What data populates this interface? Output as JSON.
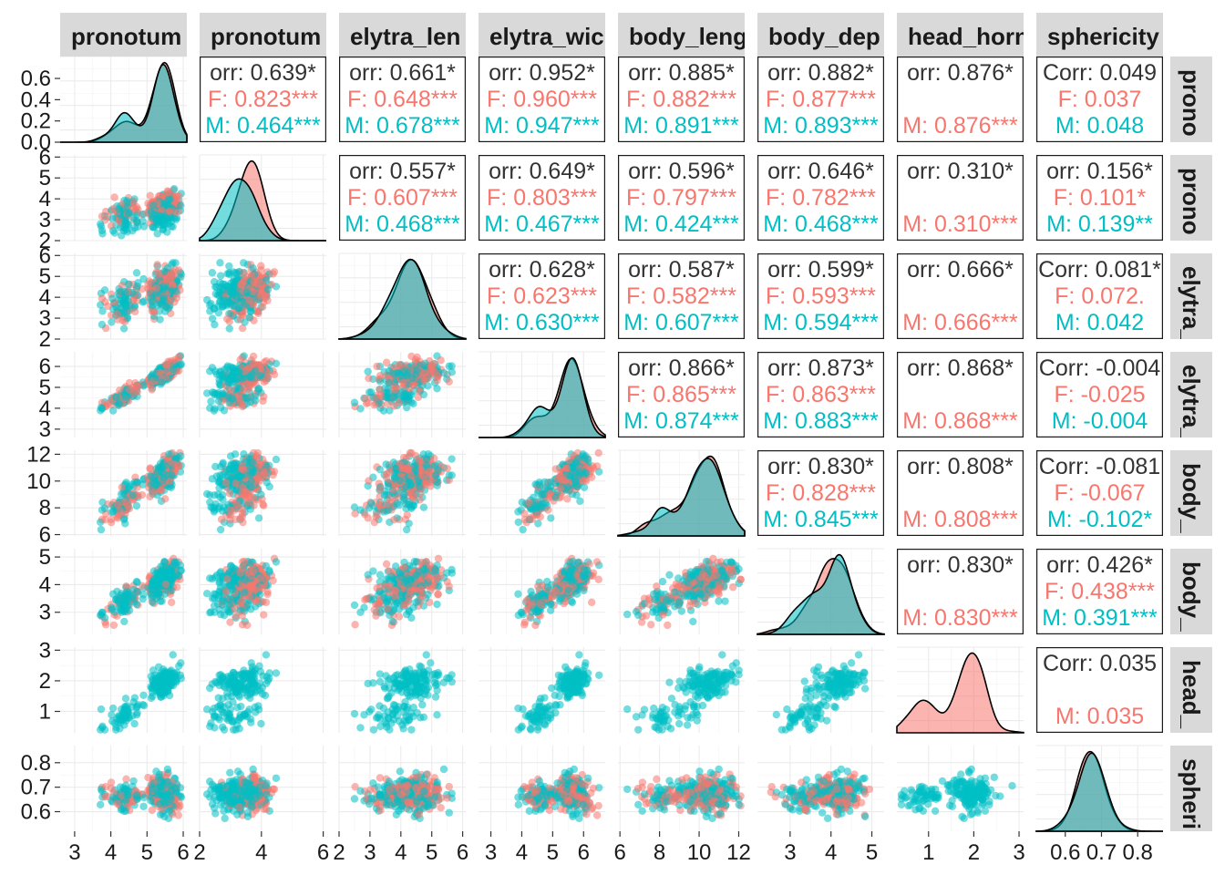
{
  "chart_data": {
    "type": "scatter",
    "variables": [
      "pronotum_width",
      "pronotum_length",
      "elytra_length",
      "elytra_width",
      "body_length",
      "body_depth",
      "head_horn",
      "sphericity"
    ],
    "column_strip_labels": [
      "pronotum",
      "pronotum",
      "elytra_len",
      "elytra_wic",
      "body_leng",
      "body_dep",
      "head_horn",
      "sphericity"
    ],
    "row_strip_labels": [
      "prono",
      "prono",
      "elytra_",
      "elytra_",
      "body_",
      "body_",
      "head_",
      "spheri"
    ],
    "groups": [
      {
        "name": "F",
        "color": "#F8766D"
      },
      {
        "name": "M",
        "color": "#00BFC4"
      }
    ],
    "ranges": [
      [
        2.6,
        6.1
      ],
      [
        2.0,
        6.1
      ],
      [
        2.0,
        6.1
      ],
      [
        2.6,
        6.7
      ],
      [
        5.9,
        12.3
      ],
      [
        2.2,
        5.3
      ],
      [
        0.3,
        3.1
      ],
      [
        0.52,
        0.87
      ]
    ],
    "x_ticks": [
      [
        3,
        4,
        5,
        6
      ],
      [
        2,
        4,
        6
      ],
      [
        2,
        3,
        4,
        5,
        6
      ],
      [
        3,
        4,
        5,
        6
      ],
      [
        6,
        8,
        10,
        12
      ],
      [
        3,
        4,
        5
      ],
      [
        1,
        2,
        3
      ],
      [
        0.6,
        0.7,
        0.8
      ]
    ],
    "x_tick_labels": [
      [
        "3",
        "4",
        "5",
        "6"
      ],
      [
        "2",
        "4",
        "6"
      ],
      [
        "2",
        "3",
        "4",
        "5",
        "6"
      ],
      [
        "3",
        "4",
        "5",
        "6"
      ],
      [
        "6",
        "8",
        "10",
        "12"
      ],
      [
        "3",
        "4",
        "5"
      ],
      [
        "1",
        "2",
        "3"
      ],
      [
        "0.6",
        "0.7",
        "0.8"
      ]
    ],
    "y_ticks": [
      [
        0.0,
        0.2,
        0.4,
        0.6
      ],
      [
        2,
        3,
        4,
        5,
        6
      ],
      [
        2,
        3,
        4,
        5,
        6
      ],
      [
        3,
        4,
        5,
        6
      ],
      [
        6,
        8,
        10,
        12
      ],
      [
        3,
        4,
        5
      ],
      [
        1,
        2,
        3
      ],
      [
        0.6,
        0.7,
        0.8
      ]
    ],
    "y_tick_labels": [
      [
        "0.0",
        "0.2",
        "0.4",
        "0.6"
      ],
      [
        "2",
        "3",
        "4",
        "5",
        "6"
      ],
      [
        "2",
        "3",
        "4",
        "5",
        "6"
      ],
      [
        "3",
        "4",
        "5",
        "6"
      ],
      [
        "6",
        "8",
        "10",
        "12"
      ],
      [
        "3",
        "4",
        "5"
      ],
      [
        "1",
        "2",
        "3"
      ],
      [
        "0.6",
        "0.7",
        "0.8"
      ]
    ],
    "density_ymax_first": 0.75,
    "correlations": [
      {
        "row": 0,
        "col": 1,
        "overall": "0.639",
        "F": "0.823",
        "M": "0.464"
      },
      {
        "row": 0,
        "col": 2,
        "overall": "0.661",
        "F": "0.648",
        "M": "0.678"
      },
      {
        "row": 0,
        "col": 3,
        "overall": "0.952",
        "F": "0.960",
        "M": "0.947"
      },
      {
        "row": 0,
        "col": 4,
        "overall": "0.885",
        "F": "0.882",
        "M": "0.891"
      },
      {
        "row": 0,
        "col": 5,
        "overall": "0.882",
        "F": "0.877",
        "M": "0.893"
      },
      {
        "row": 0,
        "col": 6,
        "overall": "0.876",
        "F": "",
        "M": "0.876"
      },
      {
        "row": 0,
        "col": 7,
        "overall": "0.049",
        "F": "0.037",
        "M": "0.048"
      },
      {
        "row": 1,
        "col": 2,
        "overall": "0.557",
        "F": "0.607",
        "M": "0.468"
      },
      {
        "row": 1,
        "col": 3,
        "overall": "0.649",
        "F": "0.803",
        "M": "0.467"
      },
      {
        "row": 1,
        "col": 4,
        "overall": "0.596",
        "F": "0.797",
        "M": "0.424"
      },
      {
        "row": 1,
        "col": 5,
        "overall": "0.646",
        "F": "0.782",
        "M": "0.468"
      },
      {
        "row": 1,
        "col": 6,
        "overall": "0.310",
        "F": "",
        "M": "0.310"
      },
      {
        "row": 1,
        "col": 7,
        "overall": "0.156",
        "F": "0.101",
        "M": "0.139"
      },
      {
        "row": 2,
        "col": 3,
        "overall": "0.628",
        "F": "0.623",
        "M": "0.630"
      },
      {
        "row": 2,
        "col": 4,
        "overall": "0.587",
        "F": "0.582",
        "M": "0.607"
      },
      {
        "row": 2,
        "col": 5,
        "overall": "0.599",
        "F": "0.593",
        "M": "0.594"
      },
      {
        "row": 2,
        "col": 6,
        "overall": "0.666",
        "F": "",
        "M": "0.666"
      },
      {
        "row": 2,
        "col": 7,
        "overall": "0.081",
        "F": "0.072",
        "M": "0.042"
      },
      {
        "row": 3,
        "col": 4,
        "overall": "0.866",
        "F": "0.865",
        "M": "0.874"
      },
      {
        "row": 3,
        "col": 5,
        "overall": "0.873",
        "F": "0.863",
        "M": "0.883"
      },
      {
        "row": 3,
        "col": 6,
        "overall": "0.868",
        "F": "",
        "M": "0.868"
      },
      {
        "row": 3,
        "col": 7,
        "overall": "-0.004",
        "F": "-0.025",
        "M": "-0.004"
      },
      {
        "row": 4,
        "col": 5,
        "overall": "0.830",
        "F": "0.828",
        "M": "0.845"
      },
      {
        "row": 4,
        "col": 6,
        "overall": "0.808",
        "F": "",
        "M": "0.808"
      },
      {
        "row": 4,
        "col": 7,
        "overall": "-0.081",
        "F": "-0.067",
        "M": "-0.102"
      },
      {
        "row": 5,
        "col": 6,
        "overall": "0.830",
        "F": "",
        "M": "0.830"
      },
      {
        "row": 5,
        "col": 7,
        "overall": "0.426",
        "F": "0.438",
        "M": "0.391"
      },
      {
        "row": 6,
        "col": 7,
        "overall": "0.035",
        "F": "",
        "M": "0.035"
      }
    ],
    "corr_cells_text": {
      "0-1": [
        "orr: 0.639*",
        "F: 0.823***",
        "M: 0.464***"
      ],
      "0-2": [
        "orr: 0.661*",
        "F: 0.648***",
        "M: 0.678***"
      ],
      "0-3": [
        "orr: 0.952*",
        "F: 0.960***",
        "M: 0.947***"
      ],
      "0-4": [
        "orr: 0.885*",
        "F: 0.882***",
        "M: 0.891***"
      ],
      "0-5": [
        "orr: 0.882*",
        "F: 0.877***",
        "M: 0.893***"
      ],
      "0-6": [
        "orr: 0.876*",
        "",
        "M: 0.876***"
      ],
      "0-7": [
        "Corr: 0.049",
        "F: 0.037",
        "M: 0.048"
      ],
      "1-2": [
        "orr: 0.557*",
        "F: 0.607***",
        "M: 0.468***"
      ],
      "1-3": [
        "orr: 0.649*",
        "F: 0.803***",
        "M: 0.467***"
      ],
      "1-4": [
        "orr: 0.596*",
        "F: 0.797***",
        "M: 0.424***"
      ],
      "1-5": [
        "orr: 0.646*",
        "F: 0.782***",
        "M: 0.468***"
      ],
      "1-6": [
        "orr: 0.310*",
        "",
        "M: 0.310***"
      ],
      "1-7": [
        "orr: 0.156*",
        "F: 0.101*",
        "M: 0.139**"
      ],
      "2-3": [
        "orr: 0.628*",
        "F: 0.623***",
        "M: 0.630***"
      ],
      "2-4": [
        "orr: 0.587*",
        "F: 0.582***",
        "M: 0.607***"
      ],
      "2-5": [
        "orr: 0.599*",
        "F: 0.593***",
        "M: 0.594***"
      ],
      "2-6": [
        "orr: 0.666*",
        "",
        "M: 0.666***"
      ],
      "2-7": [
        "Corr: 0.081*",
        "F: 0.072.",
        "M: 0.042"
      ],
      "3-4": [
        "orr: 0.866*",
        "F: 0.865***",
        "M: 0.874***"
      ],
      "3-5": [
        "orr: 0.873*",
        "F: 0.863***",
        "M: 0.883***"
      ],
      "3-6": [
        "orr: 0.868*",
        "",
        "M: 0.868***"
      ],
      "3-7": [
        "Corr: -0.004",
        "F: -0.025",
        "M: -0.004"
      ],
      "4-5": [
        "orr: 0.830*",
        "F: 0.828***",
        "M: 0.845***"
      ],
      "4-6": [
        "orr: 0.808*",
        "",
        "M: 0.808***"
      ],
      "4-7": [
        "Corr: -0.081",
        "F: -0.067",
        "M: -0.102*"
      ],
      "5-6": [
        "orr: 0.830*",
        "",
        "M: 0.830***"
      ],
      "5-7": [
        "orr: 0.426*",
        "F: 0.438***",
        "M: 0.391***"
      ],
      "6-7": [
        "Corr: 0.035",
        "",
        "M: 0.035"
      ]
    },
    "single_group_colors": {
      "head_horn": "#F8766D"
    },
    "grid": true,
    "legend": "none"
  }
}
